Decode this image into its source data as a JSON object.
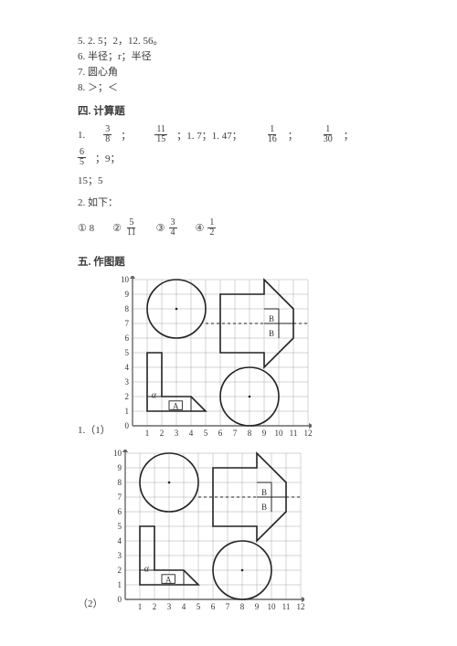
{
  "answers5to8": {
    "a5": "5. 2. 5；2，12. 56。",
    "a6": "6. 半径；r；半径",
    "a7": "7. 圆心角",
    "a8": "8. ＞；＜"
  },
  "sec4": {
    "title": "四. 计算题",
    "q1": {
      "lead": "1.",
      "f1n": "3",
      "f1d": "8",
      "sep": "；",
      "f2n": "11",
      "f2d": "15",
      "mid1": "；1. 7；1. 47；",
      "f3n": "1",
      "f3d": "16",
      "f4n": "1",
      "f4d": "30",
      "f5n": "6",
      "f5d": "5",
      "tail": "；9；",
      "line2": "15；5"
    },
    "q2_lead": "2. 如下：",
    "q2": {
      "c1": "① 8",
      "c2": "②",
      "c2n": "5",
      "c2d": "11",
      "c3": "③",
      "c3n": "3",
      "c3d": "4",
      "c4": "④",
      "c4n": "1",
      "c4d": "2"
    }
  },
  "sec5": {
    "title": "五. 作图题",
    "label1": "1.（1）",
    "label2": "（2）"
  },
  "grid": {
    "xticks": [
      "1",
      "2",
      "3",
      "4",
      "5",
      "6",
      "7",
      "8",
      "9",
      "10",
      "11",
      "12"
    ],
    "yticks": [
      "10",
      "9",
      "8",
      "7",
      "6",
      "5",
      "4",
      "3",
      "2",
      "1",
      "0"
    ],
    "cell": 16,
    "width": 192,
    "height": 160,
    "stroke": "#666666",
    "gridStroke": "#a8a8a8",
    "shapeStroke": "#222222",
    "shapeWidth": 1.6,
    "axisWidth": 1.4,
    "labelA": "A",
    "labelAlpha": "α",
    "labelB1": "B",
    "labelB2": "B"
  }
}
